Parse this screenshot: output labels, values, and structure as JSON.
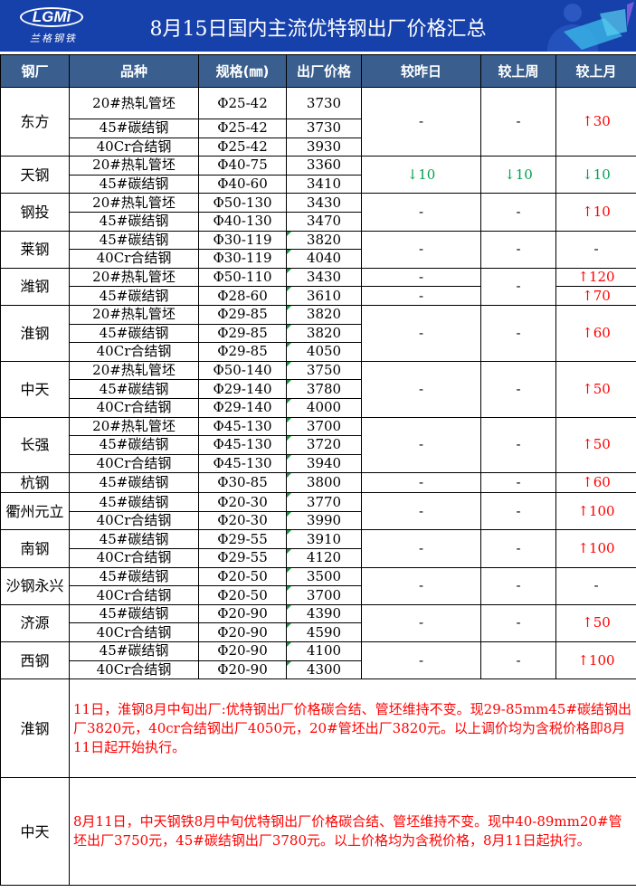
{
  "header": {
    "title": "8月15日国内主流优特钢出厂价格汇总",
    "logo_text": "LGMi",
    "logo_sub": "兰格钢铁"
  },
  "columns": [
    "钢厂",
    "品种",
    "规格(㎜)",
    "出厂价格",
    "较昨日",
    "较上周",
    "较上月"
  ],
  "colors": {
    "up": "#ff0000",
    "down": "#00a050",
    "header_bg": "#3a5f8e",
    "banner_bg": "#1640aa"
  },
  "groups": [
    {
      "mill": "东方",
      "rows": [
        [
          "20#热轧管坯",
          "Φ25-42",
          "3730"
        ],
        [
          "45#碳结钢",
          "Φ25-42",
          "3730"
        ],
        [
          "40Cr合结钢",
          "Φ25-42",
          "3930"
        ]
      ],
      "day": "-",
      "week": "-",
      "month": "30",
      "month_dir": "up"
    },
    {
      "mill": "天钢",
      "rows": [
        [
          "20#热轧管坯",
          "Φ40-75",
          "3360"
        ],
        [
          "45#碳结钢",
          "Φ40-60",
          "3410"
        ]
      ],
      "day": "10",
      "day_dir": "down",
      "week": "10",
      "week_dir": "down",
      "month": "10",
      "month_dir": "down"
    },
    {
      "mill": "钢投",
      "rows": [
        [
          "20#热轧管坯",
          "Φ50-130",
          "3430"
        ],
        [
          "45#碳结钢",
          "Φ40-130",
          "3470"
        ]
      ],
      "day": "-",
      "week": "-",
      "month": "10",
      "month_dir": "up"
    },
    {
      "mill": "莱钢",
      "rows": [
        [
          "45#碳结钢",
          "Φ30-119",
          "3820"
        ],
        [
          "40Cr合结钢",
          "Φ30-119",
          "4040"
        ]
      ],
      "day": "-",
      "week": "-",
      "month": "-"
    },
    {
      "mill": "潍钢",
      "rows": [
        [
          "20#热轧管坯",
          "Φ50-110",
          "3430"
        ],
        [
          "45#碳结钢",
          "Φ28-60",
          "3610"
        ]
      ],
      "day_rows": [
        "-",
        "-"
      ],
      "week": "-",
      "month_rows": [
        "120",
        "70"
      ],
      "month_dir": "up"
    },
    {
      "mill": "淮钢",
      "rows": [
        [
          "20#热轧管坯",
          "Φ29-85",
          "3820"
        ],
        [
          "45#碳结钢",
          "Φ29-85",
          "3820"
        ],
        [
          "40Cr合结钢",
          "Φ29-85",
          "4050"
        ]
      ],
      "day": "-",
      "week": "-",
      "month": "60",
      "month_dir": "up"
    },
    {
      "mill": "中天",
      "rows": [
        [
          "20#热轧管坯",
          "Φ50-140",
          "3750"
        ],
        [
          "45#碳结钢",
          "Φ29-140",
          "3780"
        ],
        [
          "40Cr合结钢",
          "Φ29-140",
          "4000"
        ]
      ],
      "day": "-",
      "week": "-",
      "month": "50",
      "month_dir": "up"
    },
    {
      "mill": "长强",
      "rows": [
        [
          "20#热轧管坯",
          "Φ45-130",
          "3700"
        ],
        [
          "45#碳结钢",
          "Φ45-130",
          "3720"
        ],
        [
          "40Cr合结钢",
          "Φ45-130",
          "3940"
        ]
      ],
      "day": "-",
      "week": "-",
      "month": "50",
      "month_dir": "up"
    },
    {
      "mill": "杭钢",
      "rows": [
        [
          "45#碳结钢",
          "Φ30-85",
          "3800"
        ]
      ],
      "day": "-",
      "week": "-",
      "month": "60",
      "month_dir": "up"
    },
    {
      "mill": "衢州元立",
      "rows": [
        [
          "45#碳结钢",
          "Φ20-30",
          "3770"
        ],
        [
          "40Cr合结钢",
          "Φ20-30",
          "3990"
        ]
      ],
      "day": "-",
      "week": "-",
      "month": "100",
      "month_dir": "up"
    },
    {
      "mill": "南钢",
      "rows": [
        [
          "45#碳结钢",
          "Φ29-55",
          "3910"
        ],
        [
          "40Cr合结钢",
          "Φ29-55",
          "4120"
        ]
      ],
      "day": "-",
      "week": "-",
      "month": "100",
      "month_dir": "up"
    },
    {
      "mill": "沙钢永兴",
      "rows": [
        [
          "45#碳结钢",
          "Φ20-50",
          "3500"
        ],
        [
          "40Cr合结钢",
          "Φ20-50",
          "3700"
        ]
      ],
      "day": "-",
      "week": "-",
      "month": "-"
    },
    {
      "mill": "济源",
      "rows": [
        [
          "45#碳结钢",
          "Φ20-90",
          "4390"
        ],
        [
          "40Cr合结钢",
          "Φ20-90",
          "4590"
        ]
      ],
      "day": "-",
      "week": "-",
      "month": "50",
      "month_dir": "up"
    },
    {
      "mill": "西钢",
      "rows": [
        [
          "45#碳结钢",
          "Φ20-90",
          "4100"
        ],
        [
          "40Cr合结钢",
          "Φ20-90",
          "4300"
        ]
      ],
      "day": "-",
      "week": "-",
      "month": "100",
      "month_dir": "up"
    }
  ],
  "notes": [
    {
      "mill": "淮钢",
      "text": "11日，淮钢8月中旬出厂:优特钢出厂价格碳合结、管坯维持不变。现29-85mm45#碳结钢出厂3820元，40cr合结钢出厂4050元，20#管坯出厂3820元。以上调价均为含税价格即8月11日起开始执行。"
    },
    {
      "mill": "中天",
      "text": "8月11日，中天钢铁8月中旬优特钢出厂价格碳合结、管坯维持不变。现中40-89mm20#管坯出厂3750元，45#碳结钢出厂3780元。以上价格均为含税价格，8月11日起执行。"
    }
  ]
}
